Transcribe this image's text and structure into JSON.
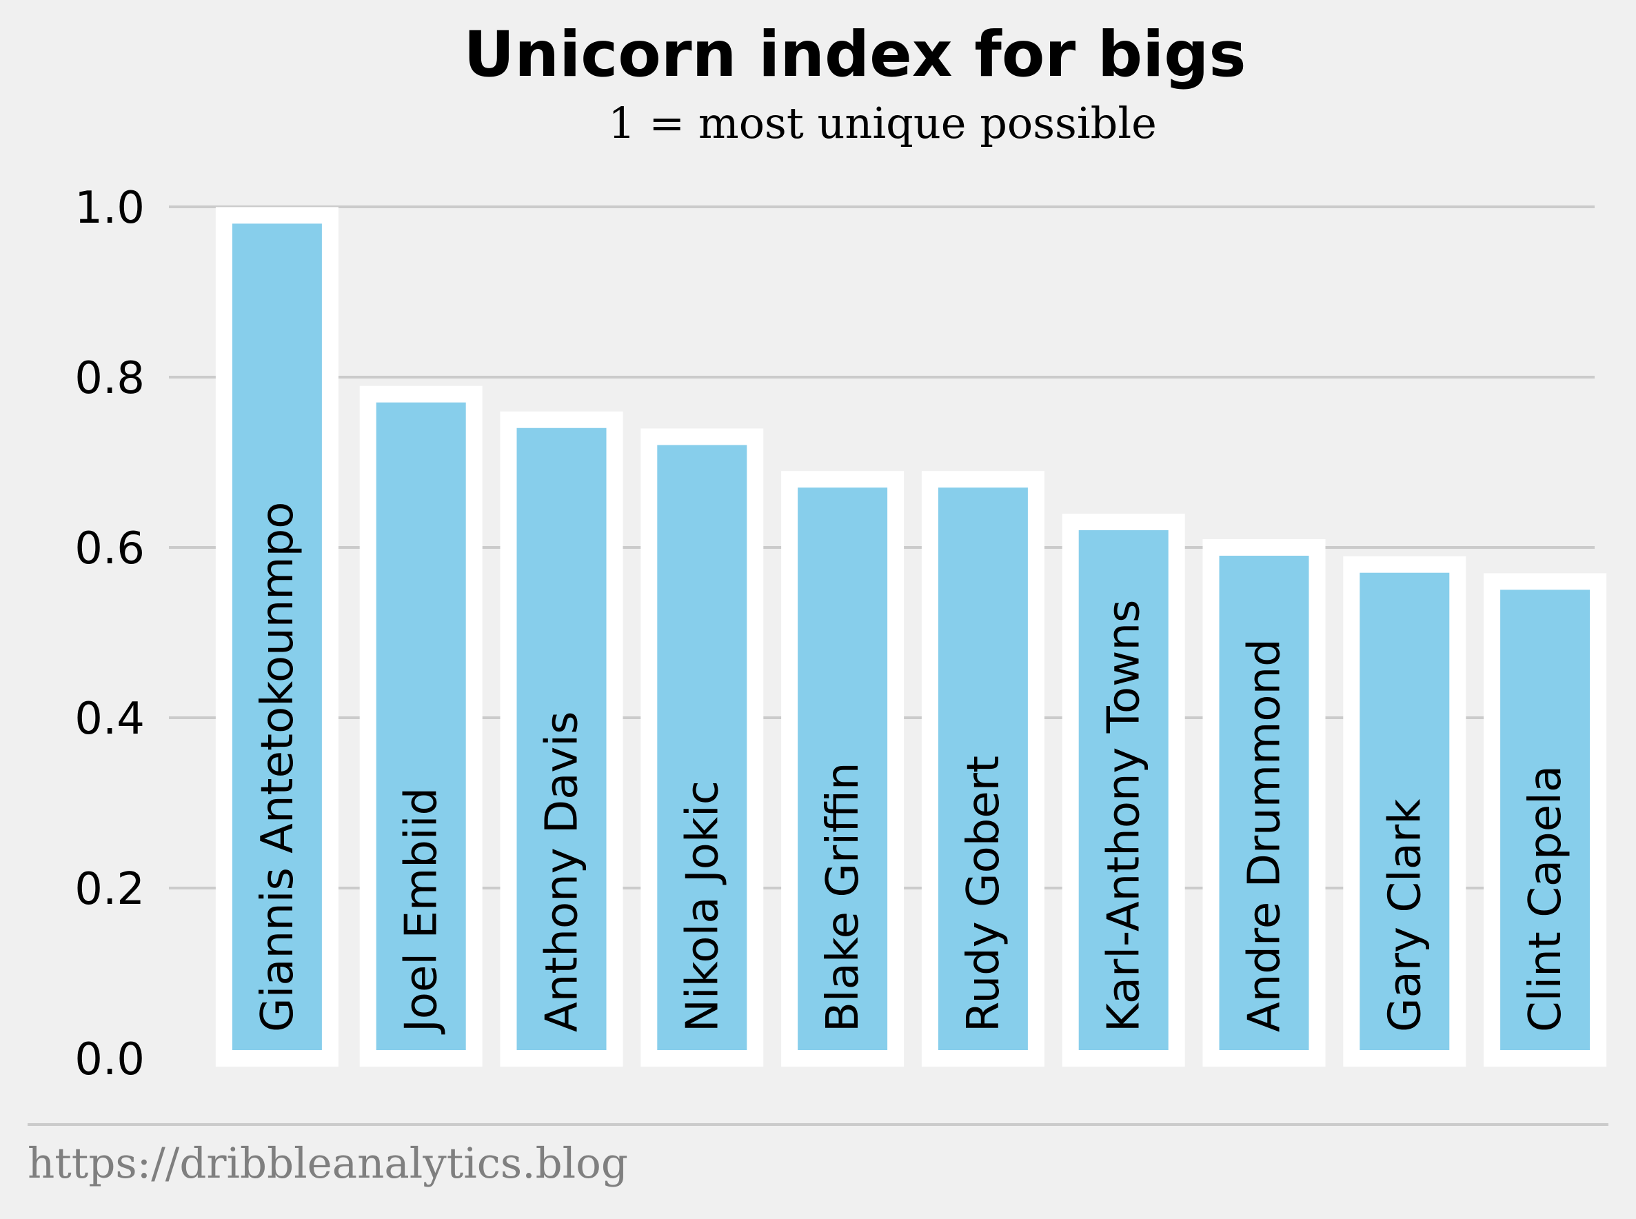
{
  "chart_data": {
    "type": "bar",
    "title": "Unicorn index for bigs",
    "subtitle": "1 = most unique possible",
    "categories": [
      "Giannis Antetokounmpo",
      "Joel Embiid",
      "Anthony Davis",
      "Nikola Jokic",
      "Blake Griffin",
      "Rudy Gobert",
      "Karl-Anthony Towns",
      "Andre Drummond",
      "Gary Clark",
      "Clint Capela"
    ],
    "values": [
      0.99,
      0.78,
      0.75,
      0.73,
      0.68,
      0.68,
      0.63,
      0.6,
      0.58,
      0.56
    ],
    "ylim": [
      0,
      1.0
    ],
    "yticks": [
      "0.0",
      "0.2",
      "0.4",
      "0.6",
      "0.8",
      "1.0"
    ],
    "xlabel": "",
    "ylabel": "",
    "grid": true,
    "bar_color": "#87ceeb",
    "bar_edge_color": "#ffffff",
    "gridline_color": "#cbcbcb",
    "background_color": "#f0f0f0"
  },
  "footer": {
    "source": "https://dribbleanalytics.blog"
  }
}
